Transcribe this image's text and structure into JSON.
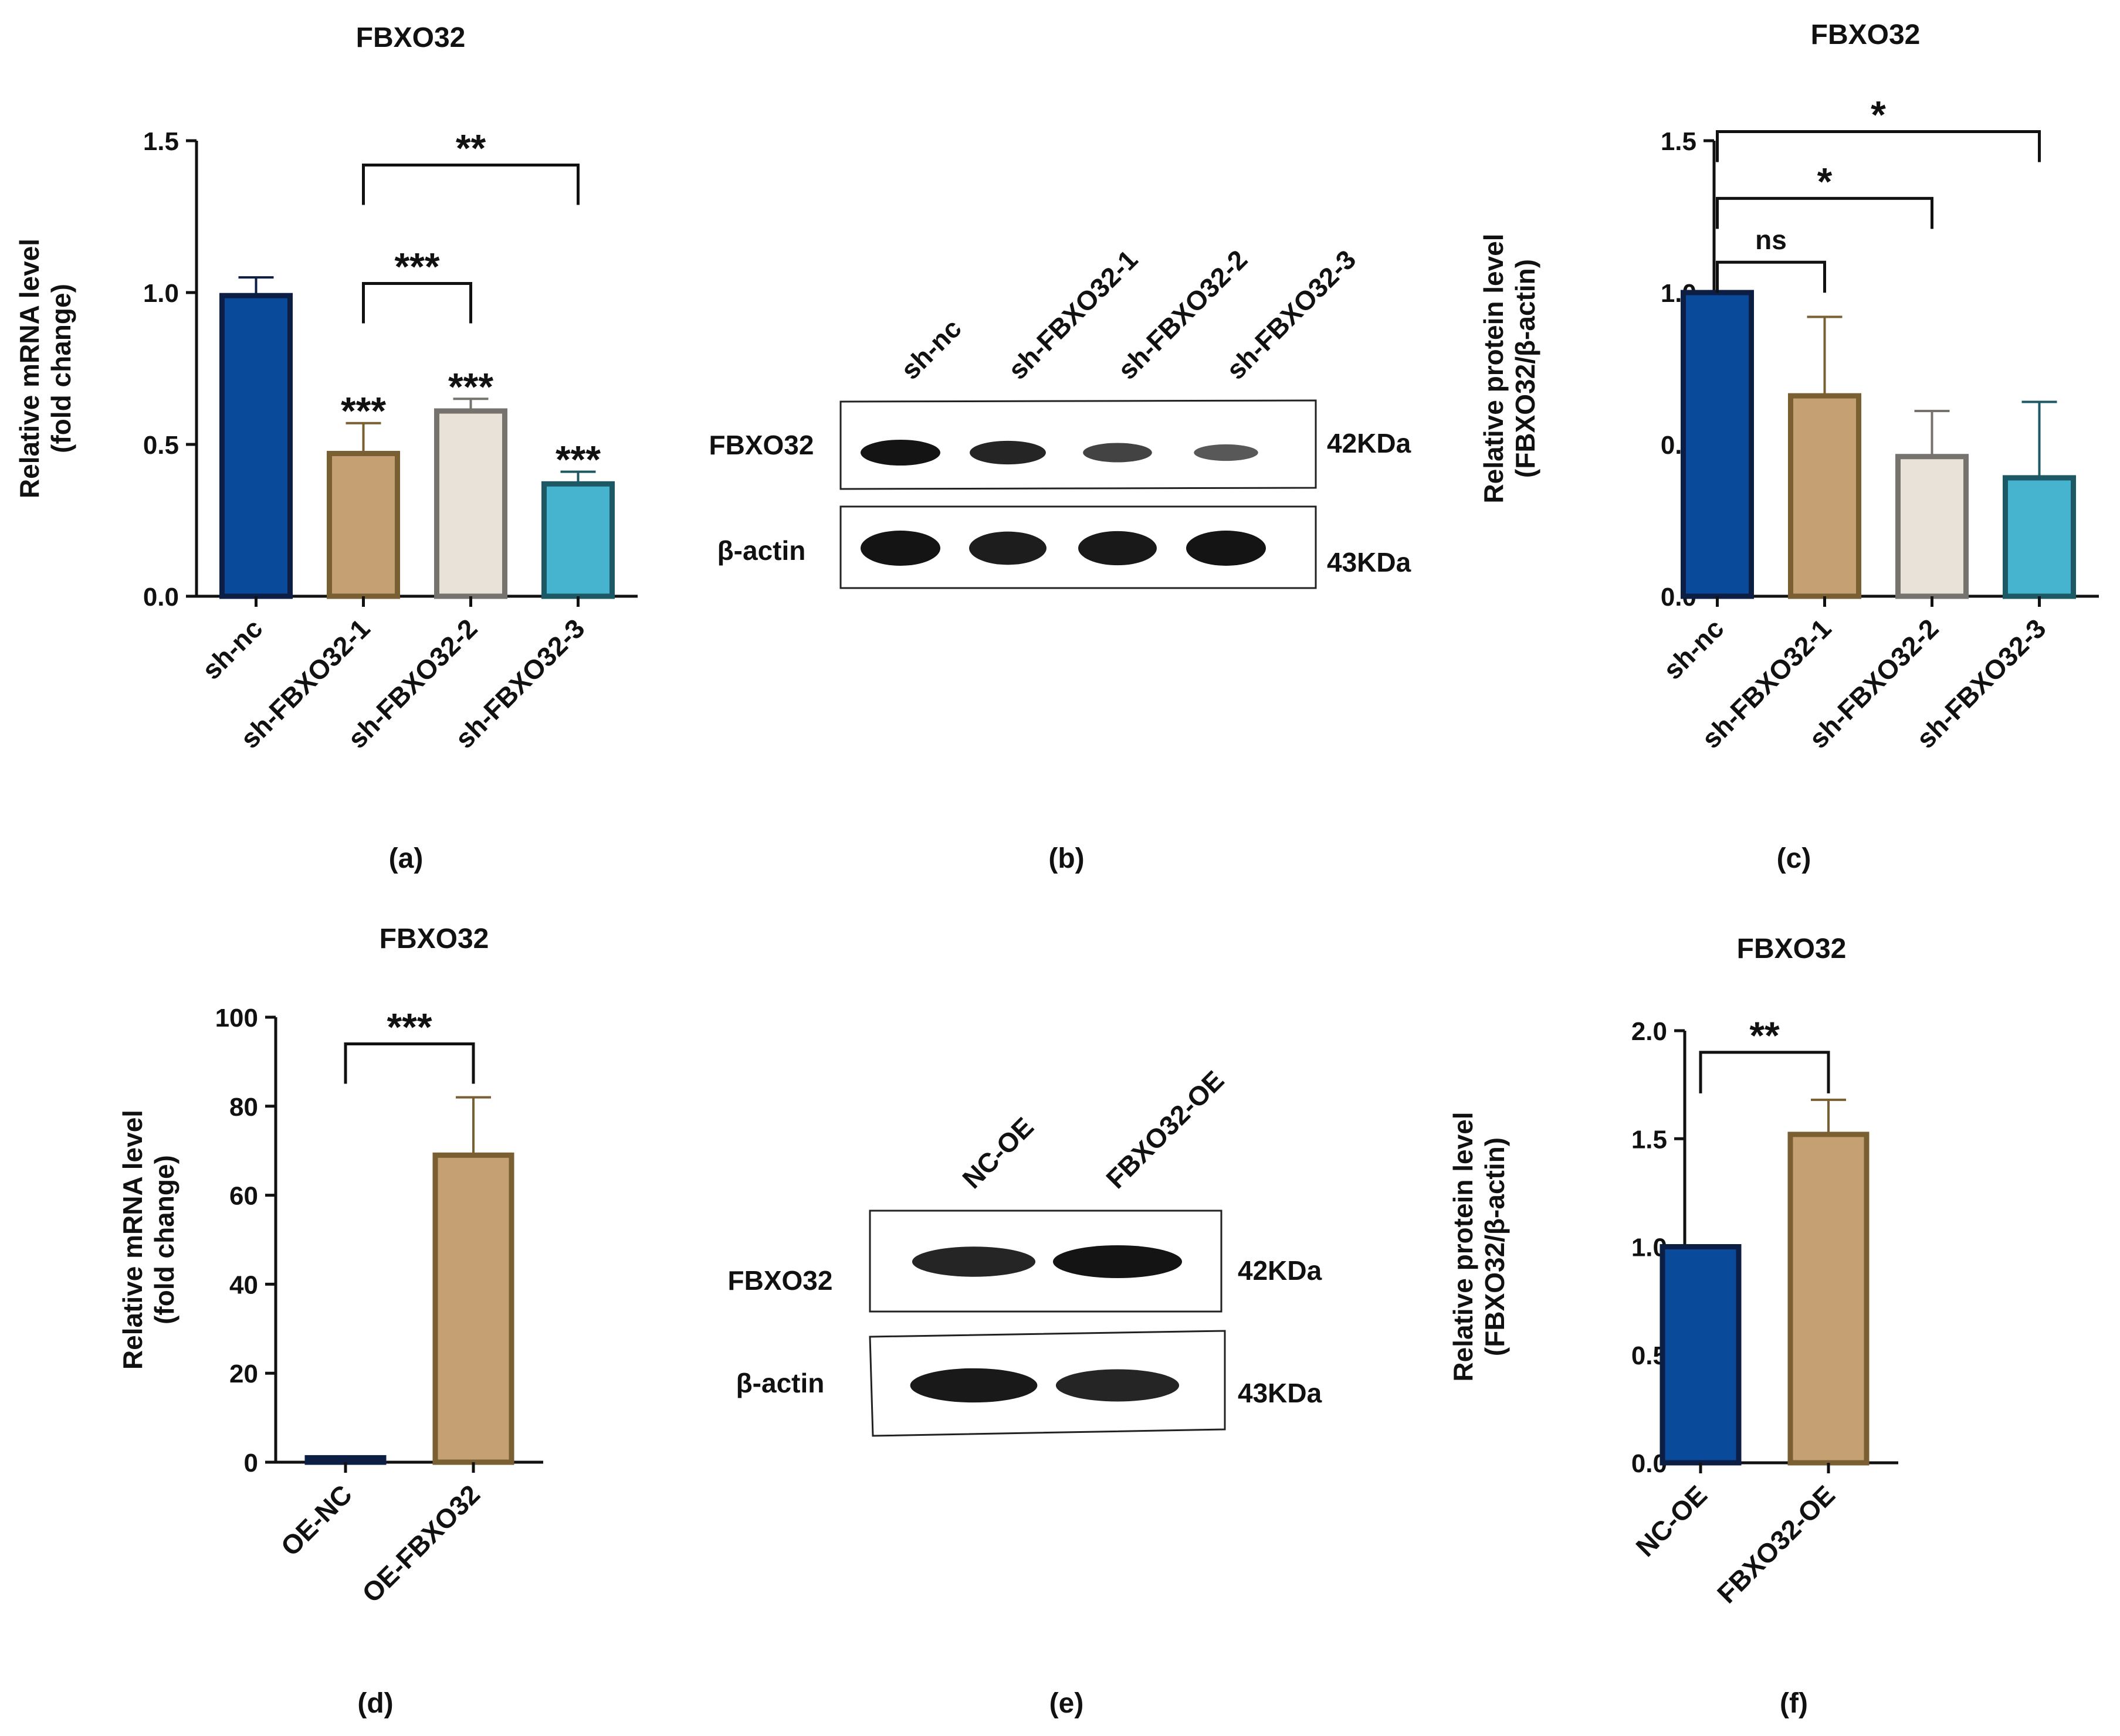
{
  "colors": {
    "navy": "#0a4a9b",
    "navy_edge": "#0c1e44",
    "tan": "#c4a073",
    "tan_edge": "#7a5f32",
    "light": "#e8e2d8",
    "light_edge": "#76736e",
    "teal": "#46b3cf",
    "teal_edge": "#1d5964"
  },
  "chart_data": [
    {
      "panel": "(a)",
      "type": "bar",
      "title": "FBXO32",
      "ylabel_lines": [
        "Relative mRNA level",
        "(fold change)"
      ],
      "ylim": [
        0,
        1.5
      ],
      "yticks": [
        "0.0",
        "0.5",
        "1.0",
        "1.5"
      ],
      "categories": [
        "sh-nc",
        "sh-FBXO32-1",
        "sh-FBXO32-2",
        "sh-FBXO32-3"
      ],
      "values": [
        0.99,
        0.47,
        0.61,
        0.37
      ],
      "errors": [
        0.06,
        0.1,
        0.04,
        0.04
      ],
      "bar_stars": [
        "",
        "***",
        "***",
        "***"
      ],
      "brackets": [
        {
          "from": 1,
          "to": 2,
          "y": 1.03,
          "label": "***"
        },
        {
          "from": 1,
          "to": 3,
          "y": 1.42,
          "label": "**"
        }
      ]
    },
    {
      "panel": "(c)",
      "type": "bar",
      "title": "FBXO32",
      "ylabel_lines": [
        "Relative protein level",
        "(FBXO32/β-actin)"
      ],
      "ylim": [
        0,
        1.5
      ],
      "yticks": [
        "0.0",
        "0.5",
        "1.0",
        "1.5"
      ],
      "categories": [
        "sh-nc",
        "sh-FBXO32-1",
        "sh-FBXO32-2",
        "sh-FBXO32-3"
      ],
      "values": [
        1.0,
        0.66,
        0.46,
        0.39
      ],
      "errors": [
        0.0,
        0.26,
        0.15,
        0.25
      ],
      "bar_stars": [
        "",
        "",
        "",
        ""
      ],
      "brackets": [
        {
          "from": 0,
          "to": 1,
          "y": 1.1,
          "label": "ns"
        },
        {
          "from": 0,
          "to": 2,
          "y": 1.31,
          "label": "*"
        },
        {
          "from": 0,
          "to": 3,
          "y": 1.53,
          "label": "*"
        }
      ]
    },
    {
      "panel": "(d)",
      "type": "bar",
      "title": "FBXO32",
      "ylabel_lines": [
        "Relative mRNA level",
        "(fold change)"
      ],
      "ylim": [
        0,
        100
      ],
      "yticks": [
        "0",
        "20",
        "40",
        "60",
        "80",
        "100"
      ],
      "categories": [
        "OE-NC",
        "OE-FBXO32"
      ],
      "values": [
        1.0,
        69
      ],
      "errors": [
        0,
        13
      ],
      "bar_stars": [
        "",
        ""
      ],
      "brackets": [
        {
          "from": 0,
          "to": 1,
          "y": 94,
          "label": "***"
        }
      ]
    },
    {
      "panel": "(f)",
      "type": "bar",
      "title": "FBXO32",
      "ylabel_lines": [
        "Relative protein level",
        "(FBXO32/β-actin)"
      ],
      "ylim": [
        0,
        2.0
      ],
      "yticks": [
        "0.0",
        "0.5",
        "1.0",
        "1.5",
        "2.0"
      ],
      "categories": [
        "NC-OE",
        "FBXO32-OE"
      ],
      "values": [
        1.0,
        1.52
      ],
      "errors": [
        0,
        0.16
      ],
      "bar_stars": [
        "",
        ""
      ],
      "brackets": [
        {
          "from": 0,
          "to": 1,
          "y": 1.9,
          "label": "**"
        }
      ]
    }
  ],
  "blots": [
    {
      "panel": "(b)",
      "lanes": [
        "sh-nc",
        "sh-FBXO32-1",
        "sh-FBXO32-2",
        "sh-FBXO32-3"
      ],
      "rows": [
        {
          "label": "FBXO32",
          "size": "42KDa",
          "intensity": [
            1.0,
            0.85,
            0.55,
            0.35
          ]
        },
        {
          "label": "β-actin",
          "size": "43KDa",
          "intensity": [
            1.0,
            0.9,
            0.95,
            1.0
          ]
        }
      ]
    },
    {
      "panel": "(e)",
      "lanes": [
        "NC-OE",
        "FBXO32-OE"
      ],
      "rows": [
        {
          "label": "FBXO32",
          "size": "42KDa",
          "intensity": [
            0.85,
            1.0
          ]
        },
        {
          "label": "β-actin",
          "size": "43KDa",
          "intensity": [
            0.95,
            0.85
          ]
        }
      ]
    }
  ]
}
